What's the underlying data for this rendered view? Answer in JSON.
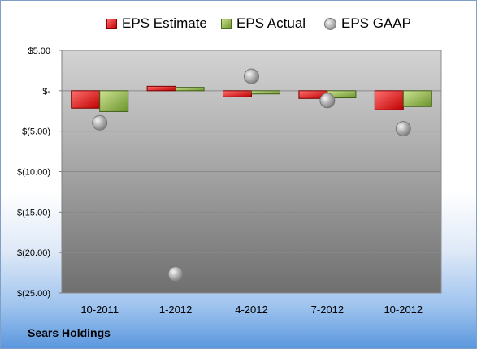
{
  "chart_data": {
    "type": "bar",
    "title": "",
    "xlabel": "",
    "ylabel": "",
    "categories": [
      "10-2011",
      "1-2012",
      "4-2012",
      "7-2012",
      "10-2012"
    ],
    "series": [
      {
        "name": "EPS Estimate",
        "kind": "bar",
        "color": "#d9262a",
        "values": [
          -2.15,
          0.55,
          -0.75,
          -0.95,
          -2.35
        ]
      },
      {
        "name": "EPS Actual",
        "kind": "bar",
        "color": "#8db04a",
        "values": [
          -2.57,
          0.42,
          -0.39,
          -0.87,
          -1.95
        ]
      },
      {
        "name": "EPS GAAP",
        "kind": "marker",
        "color": "#a6a6a6",
        "values": [
          -3.96,
          -22.66,
          1.78,
          -1.2,
          -4.69
        ]
      }
    ],
    "y_ticks": [
      "$5.00",
      "$-",
      "$(5.00)",
      "$(10.00)",
      "$(15.00)",
      "$(20.00)",
      "$(25.00)"
    ],
    "y_tick_values": [
      5,
      0,
      -5,
      -10,
      -15,
      -20,
      -25
    ],
    "ylim": [
      -25,
      5
    ],
    "grid": true,
    "legend_position": "top"
  },
  "footer": {
    "company": "Sears Holdings"
  }
}
